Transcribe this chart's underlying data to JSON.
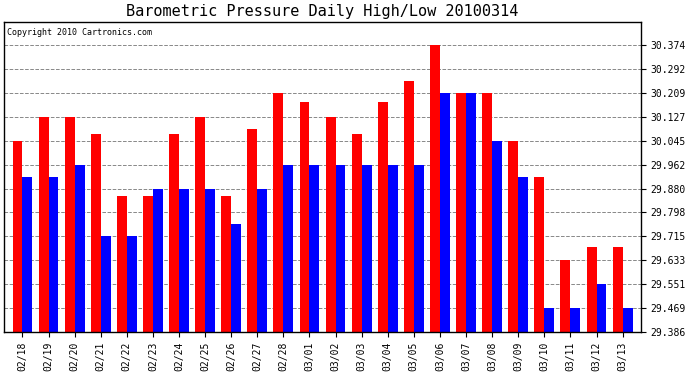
{
  "title": "Barometric Pressure Daily High/Low 20100314",
  "copyright": "Copyright 2010 Cartronics.com",
  "categories": [
    "02/18",
    "02/19",
    "02/20",
    "02/21",
    "02/22",
    "02/23",
    "02/24",
    "02/25",
    "02/26",
    "02/27",
    "02/28",
    "03/01",
    "03/02",
    "03/03",
    "03/04",
    "03/05",
    "03/06",
    "03/07",
    "03/08",
    "03/09",
    "03/10",
    "03/11",
    "03/12",
    "03/13"
  ],
  "highs": [
    30.045,
    30.127,
    30.127,
    30.068,
    29.856,
    29.856,
    30.068,
    30.127,
    29.856,
    30.086,
    30.209,
    30.18,
    30.127,
    30.068,
    30.18,
    30.25,
    30.374,
    30.209,
    30.209,
    30.045,
    29.921,
    29.633,
    29.68,
    29.68
  ],
  "lows": [
    29.921,
    29.921,
    29.962,
    29.715,
    29.715,
    29.88,
    29.88,
    29.88,
    29.757,
    29.88,
    29.962,
    29.962,
    29.962,
    29.962,
    29.962,
    29.962,
    30.209,
    30.209,
    30.045,
    29.921,
    29.469,
    29.469,
    29.551,
    29.469
  ],
  "high_color": "#ff0000",
  "low_color": "#0000ff",
  "bg_color": "#ffffff",
  "plot_bg_color": "#ffffff",
  "grid_color": "#888888",
  "ylim_min": 29.386,
  "ylim_max": 30.456,
  "yticks": [
    29.386,
    29.469,
    29.551,
    29.633,
    29.715,
    29.798,
    29.88,
    29.962,
    30.045,
    30.127,
    30.209,
    30.292,
    30.374
  ],
  "bar_width": 0.38,
  "title_fontsize": 11,
  "tick_fontsize": 7,
  "copyright_fontsize": 6
}
